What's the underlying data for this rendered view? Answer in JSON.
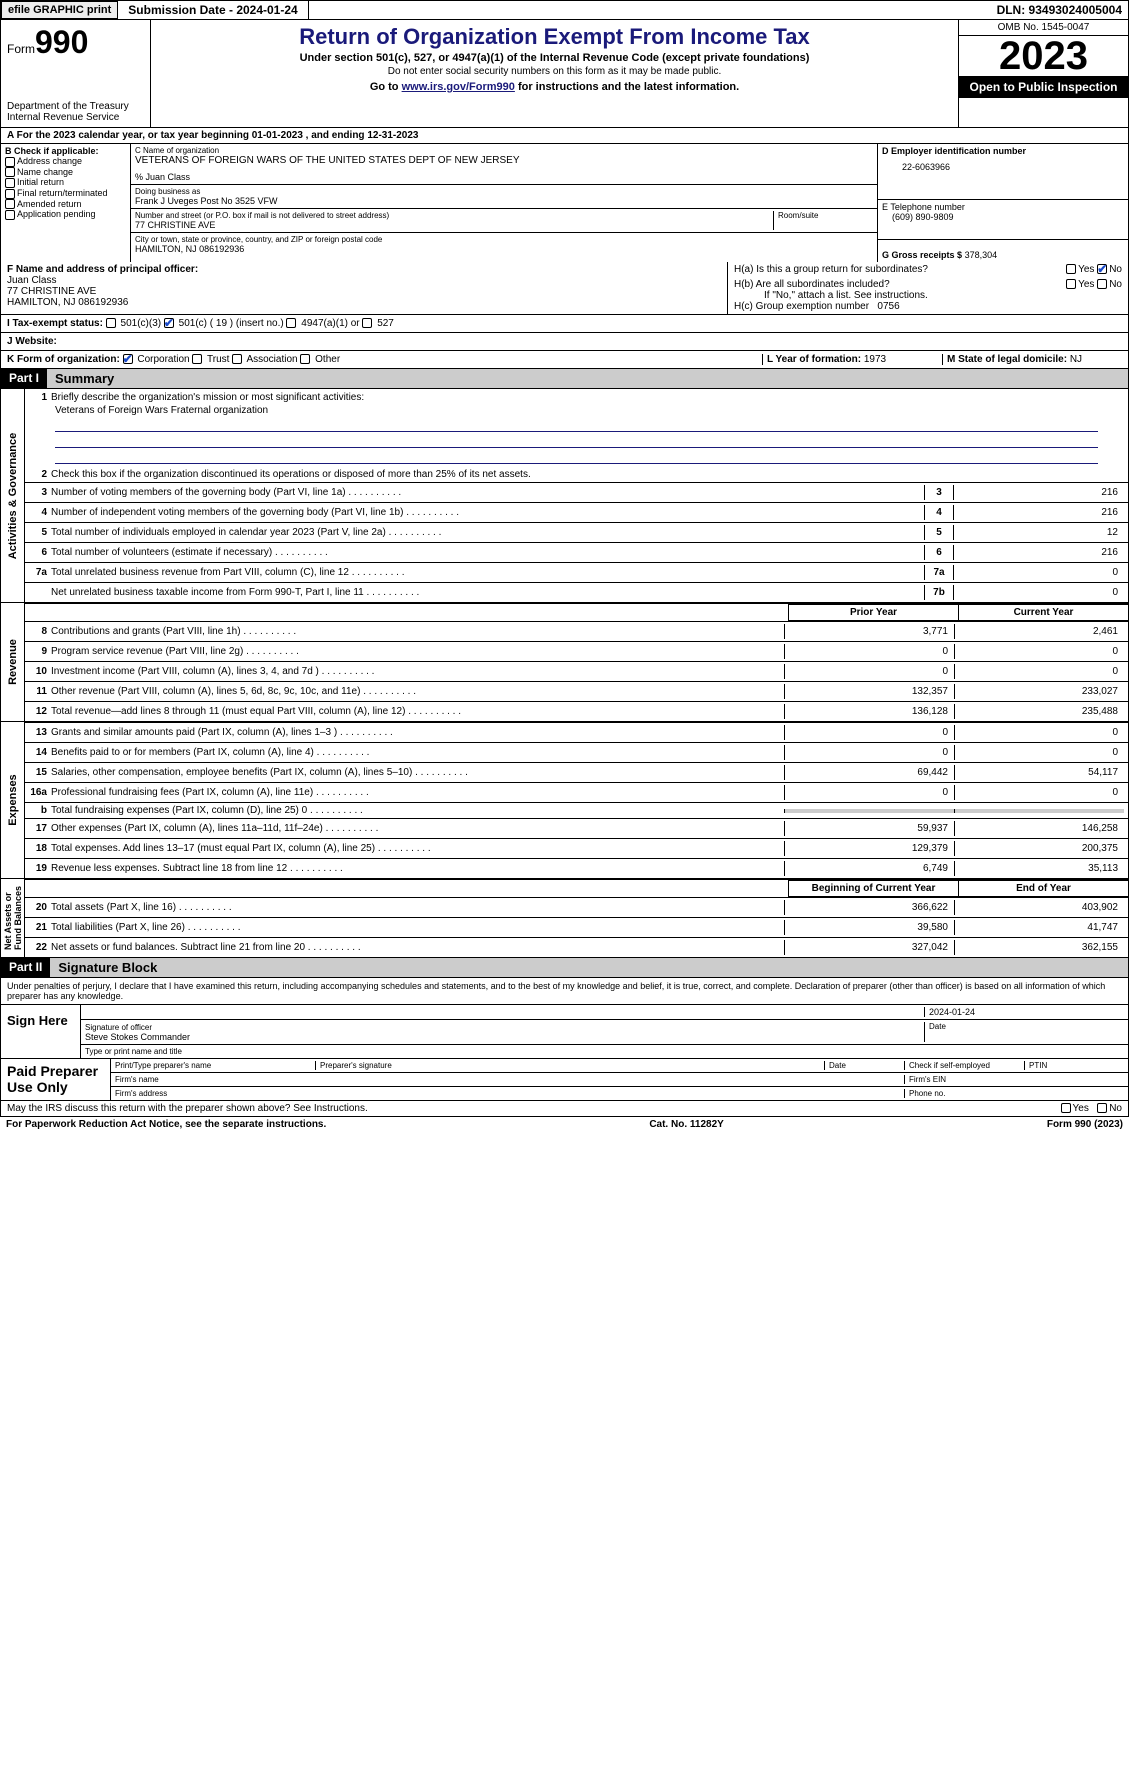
{
  "top": {
    "efile": "efile GRAPHIC print",
    "submission": "Submission Date - 2024-01-24",
    "dln": "DLN: 93493024005004"
  },
  "header": {
    "form_label": "Form",
    "form_num": "990",
    "title": "Return of Organization Exempt From Income Tax",
    "sub1": "Under section 501(c), 527, or 4947(a)(1) of the Internal Revenue Code (except private foundations)",
    "sub2": "Do not enter social security numbers on this form as it may be made public.",
    "sub3_pre": "Go to ",
    "sub3_link": "www.irs.gov/Form990",
    "sub3_post": " for instructions and the latest information.",
    "dept": "Department of the Treasury\nInternal Revenue Service",
    "omb": "OMB No. 1545-0047",
    "year": "2023",
    "inspect": "Open to Public Inspection"
  },
  "row_a": "A For the 2023 calendar year, or tax year beginning 01-01-2023    , and ending 12-31-2023",
  "section_b": {
    "title": "B Check if applicable:",
    "items": [
      "Address change",
      "Name change",
      "Initial return",
      "Final return/terminated",
      "Amended return",
      "Application pending"
    ]
  },
  "section_c": {
    "name_lbl": "C Name of organization",
    "name": "VETERANS OF FOREIGN WARS OF THE UNITED STATES DEPT OF NEW JERSEY",
    "care_of": "% Juan Class",
    "dba_lbl": "Doing business as",
    "dba": "Frank J Uveges Post No 3525 VFW",
    "addr_lbl": "Number and street (or P.O. box if mail is not delivered to street address)",
    "addr": "77 CHRISTINE AVE",
    "room_lbl": "Room/suite",
    "city_lbl": "City or town, state or province, country, and ZIP or foreign postal code",
    "city": "HAMILTON, NJ  086192936"
  },
  "section_d": {
    "lbl": "D Employer identification number",
    "val": "22-6063966"
  },
  "section_e": {
    "lbl": "E Telephone number",
    "val": "(609) 890-9809"
  },
  "section_g": {
    "lbl": "G Gross receipts $",
    "val": "378,304"
  },
  "section_f": {
    "lbl": "F  Name and address of principal officer:",
    "name": "Juan Class",
    "addr1": "77 CHRISTINE AVE",
    "addr2": "HAMILTON, NJ  086192936"
  },
  "section_h": {
    "a": "H(a)  Is this a group return for subordinates?",
    "b": "H(b)  Are all subordinates included?",
    "b_note": "If \"No,\" attach a list. See instructions.",
    "c": "H(c)  Group exemption number",
    "c_val": "0756",
    "yes": "Yes",
    "no": "No"
  },
  "section_i": {
    "lbl": "I   Tax-exempt status:",
    "opts": [
      "501(c)(3)",
      "501(c) ( 19 ) (insert no.)",
      "4947(a)(1) or",
      "527"
    ]
  },
  "section_j": {
    "lbl": "J   Website:",
    "val": ""
  },
  "section_k": {
    "lbl": "K Form of organization:",
    "opts": [
      "Corporation",
      "Trust",
      "Association",
      "Other"
    ]
  },
  "section_l": {
    "lbl": "L Year of formation:",
    "val": "1973"
  },
  "section_m": {
    "lbl": "M State of legal domicile:",
    "val": "NJ"
  },
  "part1": {
    "hdr": "Part I",
    "title": "Summary",
    "line1_lbl": "Briefly describe the organization's mission or most significant activities:",
    "line1_val": "Veterans of Foreign Wars Fraternal organization",
    "line2": "Check this box       if the organization discontinued its operations or disposed of more than 25% of its net assets.",
    "gov": [
      {
        "n": "3",
        "d": "Number of voting members of the governing body (Part VI, line 1a)",
        "b": "3",
        "v": "216"
      },
      {
        "n": "4",
        "d": "Number of independent voting members of the governing body (Part VI, line 1b)",
        "b": "4",
        "v": "216"
      },
      {
        "n": "5",
        "d": "Total number of individuals employed in calendar year 2023 (Part V, line 2a)",
        "b": "5",
        "v": "12"
      },
      {
        "n": "6",
        "d": "Total number of volunteers (estimate if necessary)",
        "b": "6",
        "v": "216"
      },
      {
        "n": "7a",
        "d": "Total unrelated business revenue from Part VIII, column (C), line 12",
        "b": "7a",
        "v": "0"
      },
      {
        "n": "",
        "d": "Net unrelated business taxable income from Form 990-T, Part I, line 11",
        "b": "7b",
        "v": "0"
      }
    ],
    "col_prior": "Prior Year",
    "col_current": "Current Year",
    "revenue": [
      {
        "n": "8",
        "d": "Contributions and grants (Part VIII, line 1h)",
        "p": "3,771",
        "c": "2,461"
      },
      {
        "n": "9",
        "d": "Program service revenue (Part VIII, line 2g)",
        "p": "0",
        "c": "0"
      },
      {
        "n": "10",
        "d": "Investment income (Part VIII, column (A), lines 3, 4, and 7d )",
        "p": "0",
        "c": "0"
      },
      {
        "n": "11",
        "d": "Other revenue (Part VIII, column (A), lines 5, 6d, 8c, 9c, 10c, and 11e)",
        "p": "132,357",
        "c": "233,027"
      },
      {
        "n": "12",
        "d": "Total revenue—add lines 8 through 11 (must equal Part VIII, column (A), line 12)",
        "p": "136,128",
        "c": "235,488"
      }
    ],
    "expenses": [
      {
        "n": "13",
        "d": "Grants and similar amounts paid (Part IX, column (A), lines 1–3 )",
        "p": "0",
        "c": "0"
      },
      {
        "n": "14",
        "d": "Benefits paid to or for members (Part IX, column (A), line 4)",
        "p": "0",
        "c": "0"
      },
      {
        "n": "15",
        "d": "Salaries, other compensation, employee benefits (Part IX, column (A), lines 5–10)",
        "p": "69,442",
        "c": "54,117"
      },
      {
        "n": "16a",
        "d": "Professional fundraising fees (Part IX, column (A), line 11e)",
        "p": "0",
        "c": "0"
      },
      {
        "n": "b",
        "d": "Total fundraising expenses (Part IX, column (D), line 25) 0",
        "p": "",
        "c": "",
        "shade": true
      },
      {
        "n": "17",
        "d": "Other expenses (Part IX, column (A), lines 11a–11d, 11f–24e)",
        "p": "59,937",
        "c": "146,258"
      },
      {
        "n": "18",
        "d": "Total expenses. Add lines 13–17 (must equal Part IX, column (A), line 25)",
        "p": "129,379",
        "c": "200,375"
      },
      {
        "n": "19",
        "d": "Revenue less expenses. Subtract line 18 from line 12",
        "p": "6,749",
        "c": "35,113"
      }
    ],
    "col_begin": "Beginning of Current Year",
    "col_end": "End of Year",
    "netassets": [
      {
        "n": "20",
        "d": "Total assets (Part X, line 16)",
        "p": "366,622",
        "c": "403,902"
      },
      {
        "n": "21",
        "d": "Total liabilities (Part X, line 26)",
        "p": "39,580",
        "c": "41,747"
      },
      {
        "n": "22",
        "d": "Net assets or fund balances. Subtract line 21 from line 20",
        "p": "327,042",
        "c": "362,155"
      }
    ]
  },
  "part2": {
    "hdr": "Part II",
    "title": "Signature Block",
    "decl": "Under penalties of perjury, I declare that I have examined this return, including accompanying schedules and statements, and to the best of my knowledge and belief, it is true, correct, and complete. Declaration of preparer (other than officer) is based on all information of which preparer has any knowledge.",
    "sign_here": "Sign Here",
    "sig_officer_lbl": "Signature of officer",
    "sig_date": "2024-01-24",
    "date_lbl": "Date",
    "officer_name": "Steve Stokes  Commander",
    "type_name_lbl": "Type or print name and title",
    "paid": "Paid Preparer Use Only",
    "prep_name_lbl": "Print/Type preparer's name",
    "prep_sig_lbl": "Preparer's signature",
    "prep_date_lbl": "Date",
    "prep_self_lbl": "Check        if self-employed",
    "ptin_lbl": "PTIN",
    "firm_name_lbl": "Firm's name",
    "firm_ein_lbl": "Firm's EIN",
    "firm_addr_lbl": "Firm's address",
    "phone_lbl": "Phone no."
  },
  "footer": {
    "discuss": "May the IRS discuss this return with the preparer shown above? See Instructions.",
    "yes": "Yes",
    "no": "No",
    "paperwork": "For Paperwork Reduction Act Notice, see the separate instructions.",
    "catno": "Cat. No. 11282Y",
    "formno": "Form 990 (2023)"
  }
}
